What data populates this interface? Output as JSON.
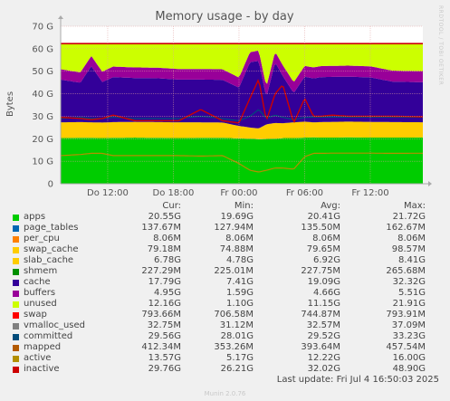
{
  "chart_data": {
    "type": "area",
    "title": "Memory usage - by day",
    "ylabel": "Bytes",
    "ylim": [
      0,
      70
    ],
    "yunit": "G",
    "yticks": [
      "0",
      "10 G",
      "20 G",
      "30 G",
      "40 G",
      "50 G",
      "60 G",
      "70 G"
    ],
    "xticks": [
      "Do 12:00",
      "Do 18:00",
      "Fr 00:00",
      "Fr 06:00",
      "Fr 12:00"
    ],
    "x_tick_hours": [
      12,
      18,
      24,
      30,
      36
    ],
    "x_range_hours": [
      7.7,
      40.8
    ],
    "stacked_order": [
      "apps",
      "page_tables",
      "per_cpu",
      "swap_cache",
      "slab_cache",
      "cache",
      "buffers",
      "unused"
    ],
    "line_series": [
      "swap",
      "vmalloc_used",
      "committed",
      "mapped",
      "active",
      "inactive"
    ],
    "series": [
      {
        "name": "apps",
        "color": "#00cc00",
        "cur": "20.55G",
        "min": "19.69G",
        "avg": "20.41G",
        "max": "21.72G"
      },
      {
        "name": "page_tables",
        "color": "#0066b3",
        "cur": "137.67M",
        "min": "127.94M",
        "avg": "135.50M",
        "max": "162.67M"
      },
      {
        "name": "per_cpu",
        "color": "#ff8000",
        "cur": "8.06M",
        "min": "8.06M",
        "avg": "8.06M",
        "max": "8.06M"
      },
      {
        "name": "swap_cache",
        "color": "#ffcc00",
        "cur": "79.18M",
        "min": "74.88M",
        "avg": "79.65M",
        "max": "98.57M"
      },
      {
        "name": "slab_cache",
        "color": "#ffcc00",
        "cur": "6.78G",
        "min": "4.78G",
        "avg": "6.92G",
        "max": "8.41G"
      },
      {
        "name": "shmem",
        "color": "#008f00",
        "cur": "227.29M",
        "min": "225.01M",
        "avg": "227.75M",
        "max": "265.68M"
      },
      {
        "name": "cache",
        "color": "#330099",
        "cur": "17.79G",
        "min": "7.41G",
        "avg": "19.09G",
        "max": "32.32G"
      },
      {
        "name": "buffers",
        "color": "#990099",
        "cur": "4.95G",
        "min": "1.59G",
        "avg": "4.66G",
        "max": "5.51G"
      },
      {
        "name": "unused",
        "color": "#ccff00",
        "cur": "12.16G",
        "min": "1.10G",
        "avg": "11.15G",
        "max": "21.91G"
      },
      {
        "name": "swap",
        "color": "#ff0000",
        "cur": "793.66M",
        "min": "706.58M",
        "avg": "744.87M",
        "max": "793.91M"
      },
      {
        "name": "vmalloc_used",
        "color": "#808080",
        "cur": "32.75M",
        "min": "31.12M",
        "avg": "32.57M",
        "max": "37.09M"
      },
      {
        "name": "committed",
        "color": "#004c7a",
        "cur": "29.56G",
        "min": "28.01G",
        "avg": "29.52G",
        "max": "33.23G"
      },
      {
        "name": "mapped",
        "color": "#b35a00",
        "cur": "412.34M",
        "min": "353.26M",
        "avg": "393.64M",
        "max": "457.54M"
      },
      {
        "name": "active",
        "color": "#b38f00",
        "cur": "13.57G",
        "min": "5.17G",
        "avg": "12.22G",
        "max": "16.00G"
      },
      {
        "name": "inactive",
        "color": "#cc0000",
        "cur": "29.76G",
        "min": "26.21G",
        "avg": "32.02G",
        "max": "48.90G"
      }
    ],
    "approx_profile": {
      "note_hours": [
        7.7,
        9.5,
        10.5,
        11.5,
        12.5,
        14.5,
        16.5,
        18.5,
        20.5,
        22.5,
        24.0,
        25.0,
        25.8,
        26.5,
        27.3,
        28.0,
        29.0,
        30.0,
        30.8,
        31.5,
        32.5,
        34.0,
        36.0,
        38.0,
        40.8
      ],
      "apps": [
        20.3,
        20.4,
        20.4,
        20.3,
        20.4,
        20.5,
        20.4,
        20.3,
        20.4,
        20.4,
        20.2,
        20.0,
        19.8,
        19.9,
        20.0,
        20.3,
        20.3,
        20.5,
        20.6,
        20.5,
        20.5,
        20.6,
        20.5,
        20.5,
        20.55
      ],
      "slab_cache": [
        7.0,
        7.0,
        6.9,
        6.9,
        7.0,
        7.0,
        7.0,
        7.0,
        6.9,
        6.8,
        5.5,
        5.0,
        4.8,
        6.5,
        7.0,
        6.6,
        7.0,
        7.1,
        6.7,
        6.9,
        7.0,
        7.0,
        7.0,
        6.9,
        6.78
      ],
      "cache": [
        19.0,
        17.5,
        25.0,
        18.0,
        20.0,
        19.5,
        19.5,
        19.0,
        19.0,
        19.0,
        17.0,
        29.0,
        30.0,
        12.0,
        27.0,
        21.0,
        13.0,
        20.0,
        19.5,
        20.0,
        20.0,
        20.0,
        19.8,
        18.0,
        17.79
      ],
      "buffers": [
        4.6,
        4.6,
        4.5,
        4.6,
        4.7,
        4.7,
        4.7,
        4.7,
        4.7,
        4.7,
        4.5,
        4.5,
        4.6,
        4.7,
        4.7,
        4.8,
        4.8,
        4.8,
        4.9,
        4.9,
        4.9,
        4.9,
        4.9,
        4.9,
        4.95
      ],
      "inactive": [
        29.5,
        29.0,
        28.5,
        29.0,
        30.5,
        28.0,
        28.0,
        28.0,
        33.0,
        28.0,
        27.0,
        38.0,
        46.5,
        28.0,
        40.0,
        44.0,
        27.0,
        38.0,
        30.0,
        30.0,
        30.5,
        30.0,
        30.0,
        30.0,
        29.76
      ],
      "committed": [
        29.0,
        29.5,
        29.0,
        29.0,
        29.5,
        29.0,
        29.0,
        29.0,
        30.0,
        29.0,
        28.0,
        30.0,
        33.0,
        29.0,
        30.5,
        29.5,
        28.5,
        29.5,
        29.6,
        29.6,
        29.6,
        29.6,
        29.6,
        29.6,
        29.56
      ],
      "active": [
        12.5,
        13.0,
        13.5,
        13.5,
        12.5,
        12.5,
        12.5,
        12.5,
        12.3,
        12.5,
        9.0,
        6.0,
        5.2,
        6.0,
        7.0,
        7.0,
        6.5,
        12.0,
        13.5,
        13.5,
        13.6,
        13.6,
        13.6,
        13.5,
        13.57
      ]
    },
    "total_ram_line": 62.3
  },
  "legend_header": {
    "cur": "Cur:",
    "min": "Min:",
    "avg": "Avg:",
    "max": "Max:"
  },
  "footer": {
    "last_update": "Last update: Fri Jul  4 16:50:03 2025",
    "munin": "Munin 2.0.76",
    "side_label": "RRDTOOL / TOBI OETIKER"
  },
  "colors": {
    "background": "#f0f0f0",
    "plot_bg": "#ffffff",
    "grid": "#e0a0a0",
    "axis": "#aaaaaa",
    "total_line": "#cc0000"
  }
}
